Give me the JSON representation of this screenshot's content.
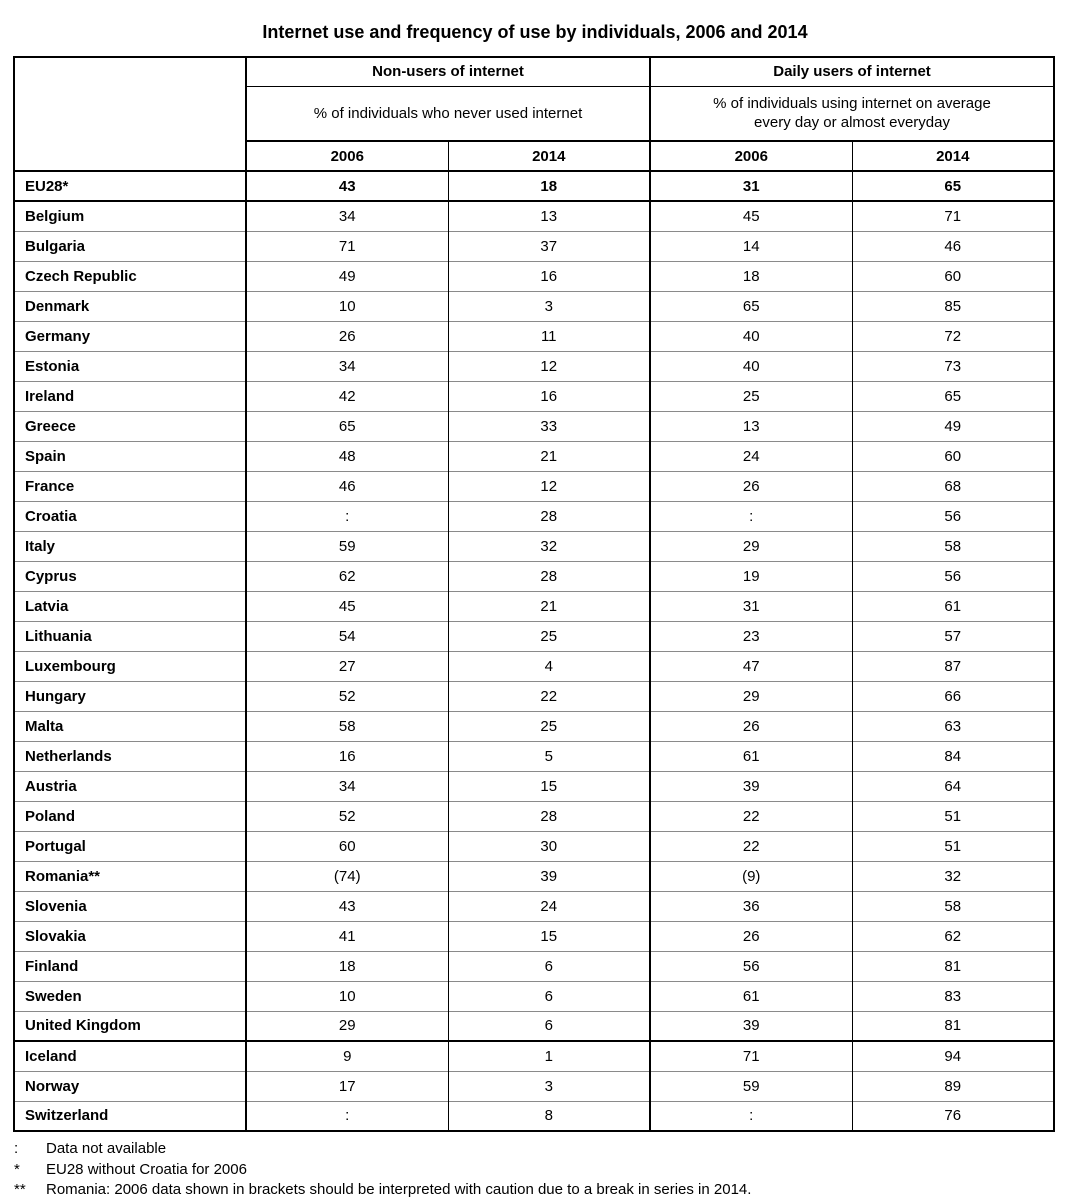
{
  "chart_data": {
    "type": "table",
    "title": "Internet use and frequency of use by individuals, 2006 and 2014",
    "column_groups": [
      {
        "label": "Non-users of internet",
        "description": "% of individuals who never used internet"
      },
      {
        "label": "Daily users of internet",
        "description": "% of individuals using internet on average every day or almost everyday"
      }
    ],
    "year_columns": [
      "2006",
      "2014",
      "2006",
      "2014"
    ],
    "rows": [
      {
        "country": "EU28*",
        "values": [
          "43",
          "18",
          "31",
          "65"
        ],
        "section": "aggregate"
      },
      {
        "country": "Belgium",
        "values": [
          "34",
          "13",
          "45",
          "71"
        ],
        "section": "eu"
      },
      {
        "country": "Bulgaria",
        "values": [
          "71",
          "37",
          "14",
          "46"
        ],
        "section": "eu"
      },
      {
        "country": "Czech Republic",
        "values": [
          "49",
          "16",
          "18",
          "60"
        ],
        "section": "eu"
      },
      {
        "country": "Denmark",
        "values": [
          "10",
          "3",
          "65",
          "85"
        ],
        "section": "eu"
      },
      {
        "country": "Germany",
        "values": [
          "26",
          "11",
          "40",
          "72"
        ],
        "section": "eu"
      },
      {
        "country": "Estonia",
        "values": [
          "34",
          "12",
          "40",
          "73"
        ],
        "section": "eu"
      },
      {
        "country": "Ireland",
        "values": [
          "42",
          "16",
          "25",
          "65"
        ],
        "section": "eu"
      },
      {
        "country": "Greece",
        "values": [
          "65",
          "33",
          "13",
          "49"
        ],
        "section": "eu"
      },
      {
        "country": "Spain",
        "values": [
          "48",
          "21",
          "24",
          "60"
        ],
        "section": "eu"
      },
      {
        "country": "France",
        "values": [
          "46",
          "12",
          "26",
          "68"
        ],
        "section": "eu"
      },
      {
        "country": "Croatia",
        "values": [
          ":",
          "28",
          ":",
          "56"
        ],
        "section": "eu"
      },
      {
        "country": "Italy",
        "values": [
          "59",
          "32",
          "29",
          "58"
        ],
        "section": "eu"
      },
      {
        "country": "Cyprus",
        "values": [
          "62",
          "28",
          "19",
          "56"
        ],
        "section": "eu"
      },
      {
        "country": "Latvia",
        "values": [
          "45",
          "21",
          "31",
          "61"
        ],
        "section": "eu"
      },
      {
        "country": "Lithuania",
        "values": [
          "54",
          "25",
          "23",
          "57"
        ],
        "section": "eu"
      },
      {
        "country": "Luxembourg",
        "values": [
          "27",
          "4",
          "47",
          "87"
        ],
        "section": "eu"
      },
      {
        "country": "Hungary",
        "values": [
          "52",
          "22",
          "29",
          "66"
        ],
        "section": "eu"
      },
      {
        "country": "Malta",
        "values": [
          "58",
          "25",
          "26",
          "63"
        ],
        "section": "eu"
      },
      {
        "country": "Netherlands",
        "values": [
          "16",
          "5",
          "61",
          "84"
        ],
        "section": "eu"
      },
      {
        "country": "Austria",
        "values": [
          "34",
          "15",
          "39",
          "64"
        ],
        "section": "eu"
      },
      {
        "country": "Poland",
        "values": [
          "52",
          "28",
          "22",
          "51"
        ],
        "section": "eu"
      },
      {
        "country": "Portugal",
        "values": [
          "60",
          "30",
          "22",
          "51"
        ],
        "section": "eu"
      },
      {
        "country": "Romania**",
        "values": [
          "(74)",
          "39",
          "(9)",
          "32"
        ],
        "section": "eu"
      },
      {
        "country": "Slovenia",
        "values": [
          "43",
          "24",
          "36",
          "58"
        ],
        "section": "eu"
      },
      {
        "country": "Slovakia",
        "values": [
          "41",
          "15",
          "26",
          "62"
        ],
        "section": "eu"
      },
      {
        "country": "Finland",
        "values": [
          "18",
          "6",
          "56",
          "81"
        ],
        "section": "eu"
      },
      {
        "country": "Sweden",
        "values": [
          "10",
          "6",
          "61",
          "83"
        ],
        "section": "eu"
      },
      {
        "country": "United Kingdom",
        "values": [
          "29",
          "6",
          "39",
          "81"
        ],
        "section": "eu"
      },
      {
        "country": "Iceland",
        "values": [
          "9",
          "1",
          "71",
          "94"
        ],
        "section": "efta"
      },
      {
        "country": "Norway",
        "values": [
          "17",
          "3",
          "59",
          "89"
        ],
        "section": "efta"
      },
      {
        "country": "Switzerland",
        "values": [
          ":",
          "8",
          ":",
          "76"
        ],
        "section": "efta"
      }
    ],
    "footnotes": [
      {
        "marker": ":",
        "text": "Data not available"
      },
      {
        "marker": "*",
        "text": "EU28 without Croatia for 2006"
      },
      {
        "marker": "**",
        "text": "Romania: 2006 data shown in brackets should be interpreted with caution due to a break in series in 2014."
      }
    ],
    "layout_hints": {
      "grid": "on",
      "value_unit": "% of individuals",
      "bold_rows": [
        "EU28*"
      ],
      "thick_separators_after": [
        "EU28*",
        "United Kingdom"
      ]
    },
    "colors": {
      "text": "#000000",
      "border_strong": "#000000",
      "row_separator": "#8a8a8a",
      "background": "#ffffff"
    }
  }
}
